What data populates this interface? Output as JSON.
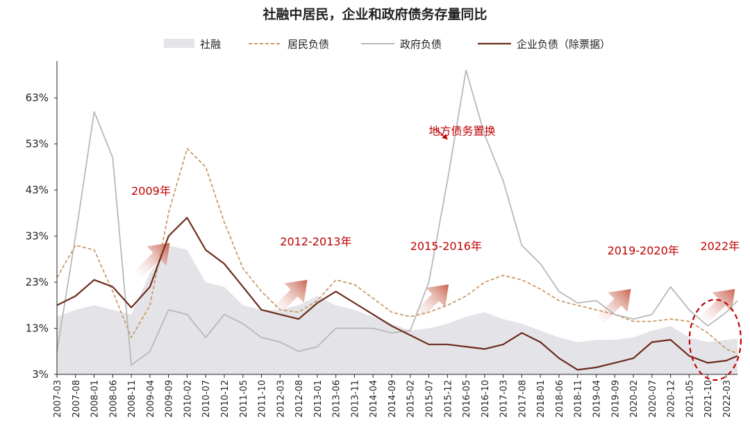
{
  "chart_data": {
    "type": "line",
    "title": "社融中居民，企业和政府债务存量同比",
    "xlabel": "",
    "ylabel": "",
    "y_ticks": [
      "3%",
      "13%",
      "23%",
      "33%",
      "43%",
      "53%",
      "63%"
    ],
    "y_tick_values": [
      3,
      13,
      23,
      33,
      43,
      53,
      63
    ],
    "ylim": [
      3,
      71
    ],
    "x_tick_labels": [
      "2007-03",
      "2007-08",
      "2008-01",
      "2008-06",
      "2008-11",
      "2009-04",
      "2009-09",
      "2010-02",
      "2010-07",
      "2010-12",
      "2011-05",
      "2011-10",
      "2012-03",
      "2012-08",
      "2013-01",
      "2013-06",
      "2013-11",
      "2014-04",
      "2014-09",
      "2015-02",
      "2015-07",
      "2015-12",
      "2016-05",
      "2016-10",
      "2017-03",
      "2017-08",
      "2018-01",
      "2018-06",
      "2018-11",
      "2019-04",
      "2019-09",
      "2020-02",
      "2020-07",
      "2020-12",
      "2021-05",
      "2021-10",
      "2022-03"
    ],
    "x_range": [
      "2007-03",
      "2022-06"
    ],
    "legend_position": "top",
    "grid": false,
    "series": [
      {
        "name": "社融",
        "style": "area",
        "color": "#e4e4e8",
        "points": [
          [
            "2007-03",
            15.5
          ],
          [
            "2007-08",
            17
          ],
          [
            "2008-01",
            18
          ],
          [
            "2008-06",
            17
          ],
          [
            "2008-11",
            16
          ],
          [
            "2009-04",
            25
          ],
          [
            "2009-09",
            31
          ],
          [
            "2010-02",
            30
          ],
          [
            "2010-07",
            23
          ],
          [
            "2010-12",
            22
          ],
          [
            "2011-05",
            18
          ],
          [
            "2011-10",
            17
          ],
          [
            "2012-03",
            17
          ],
          [
            "2012-08",
            18
          ],
          [
            "2013-01",
            20
          ],
          [
            "2013-06",
            18
          ],
          [
            "2013-11",
            17
          ],
          [
            "2014-04",
            15.5
          ],
          [
            "2014-09",
            14
          ],
          [
            "2015-02",
            12.5
          ],
          [
            "2015-07",
            13
          ],
          [
            "2015-12",
            14
          ],
          [
            "2016-05",
            15.5
          ],
          [
            "2016-10",
            16.5
          ],
          [
            "2017-03",
            15
          ],
          [
            "2017-08",
            14
          ],
          [
            "2018-01",
            12.5
          ],
          [
            "2018-06",
            11
          ],
          [
            "2018-11",
            10
          ],
          [
            "2019-04",
            10.5
          ],
          [
            "2019-09",
            10.5
          ],
          [
            "2020-02",
            11
          ],
          [
            "2020-07",
            12.5
          ],
          [
            "2020-12",
            13.5
          ],
          [
            "2021-05",
            11
          ],
          [
            "2021-10",
            10
          ],
          [
            "2022-03",
            10.5
          ],
          [
            "2022-06",
            10.8
          ]
        ]
      },
      {
        "name": "居民负债",
        "style": "dashed",
        "color": "#c99a66",
        "points": [
          [
            "2007-03",
            24
          ],
          [
            "2007-08",
            31
          ],
          [
            "2008-01",
            30
          ],
          [
            "2008-06",
            21
          ],
          [
            "2008-11",
            11
          ],
          [
            "2009-04",
            18
          ],
          [
            "2009-09",
            38
          ],
          [
            "2010-02",
            52
          ],
          [
            "2010-07",
            48
          ],
          [
            "2010-12",
            36
          ],
          [
            "2011-05",
            26
          ],
          [
            "2011-10",
            21
          ],
          [
            "2012-03",
            17
          ],
          [
            "2012-08",
            16.5
          ],
          [
            "2013-01",
            19
          ],
          [
            "2013-06",
            23.5
          ],
          [
            "2013-11",
            22.5
          ],
          [
            "2014-04",
            19.5
          ],
          [
            "2014-09",
            16.5
          ],
          [
            "2015-02",
            15.5
          ],
          [
            "2015-07",
            16.5
          ],
          [
            "2015-12",
            18
          ],
          [
            "2016-05",
            20
          ],
          [
            "2016-10",
            23
          ],
          [
            "2017-03",
            24.5
          ],
          [
            "2017-08",
            23.5
          ],
          [
            "2018-01",
            21.5
          ],
          [
            "2018-06",
            19
          ],
          [
            "2018-11",
            18
          ],
          [
            "2019-04",
            17
          ],
          [
            "2019-09",
            16
          ],
          [
            "2020-02",
            14.5
          ],
          [
            "2020-07",
            14.5
          ],
          [
            "2020-12",
            15
          ],
          [
            "2021-05",
            14.5
          ],
          [
            "2021-10",
            12
          ],
          [
            "2022-03",
            8.5
          ],
          [
            "2022-06",
            7.5
          ]
        ]
      },
      {
        "name": "政府负债",
        "style": "line",
        "color": "#b8b8b8",
        "points": [
          [
            "2007-03",
            8
          ],
          [
            "2007-08",
            33
          ],
          [
            "2008-01",
            60
          ],
          [
            "2008-06",
            50
          ],
          [
            "2008-11",
            5
          ],
          [
            "2009-04",
            8
          ],
          [
            "2009-09",
            17
          ],
          [
            "2010-02",
            16
          ],
          [
            "2010-07",
            11
          ],
          [
            "2010-12",
            16
          ],
          [
            "2011-05",
            14
          ],
          [
            "2011-10",
            11
          ],
          [
            "2012-03",
            10
          ],
          [
            "2012-08",
            8
          ],
          [
            "2013-01",
            9
          ],
          [
            "2013-06",
            13
          ],
          [
            "2013-11",
            13
          ],
          [
            "2014-04",
            13
          ],
          [
            "2014-09",
            12
          ],
          [
            "2015-02",
            12.5
          ],
          [
            "2015-07",
            23
          ],
          [
            "2015-12",
            45
          ],
          [
            "2016-05",
            69
          ],
          [
            "2016-10",
            55
          ],
          [
            "2017-03",
            45
          ],
          [
            "2017-08",
            31
          ],
          [
            "2018-01",
            27
          ],
          [
            "2018-06",
            21
          ],
          [
            "2018-11",
            18.5
          ],
          [
            "2019-04",
            19
          ],
          [
            "2019-09",
            16
          ],
          [
            "2020-02",
            15
          ],
          [
            "2020-07",
            16
          ],
          [
            "2020-12",
            22
          ],
          [
            "2021-05",
            17
          ],
          [
            "2021-10",
            13.5
          ],
          [
            "2022-03",
            16.5
          ],
          [
            "2022-06",
            19
          ]
        ]
      },
      {
        "name": "企业负债（除票据）",
        "style": "line",
        "color": "#6b2a1c",
        "points": [
          [
            "2007-03",
            18
          ],
          [
            "2007-08",
            20
          ],
          [
            "2008-01",
            23.5
          ],
          [
            "2008-06",
            22
          ],
          [
            "2008-11",
            17.5
          ],
          [
            "2009-04",
            22
          ],
          [
            "2009-09",
            33
          ],
          [
            "2010-02",
            37
          ],
          [
            "2010-07",
            30
          ],
          [
            "2010-12",
            27
          ],
          [
            "2011-05",
            22
          ],
          [
            "2011-10",
            17
          ],
          [
            "2012-03",
            16
          ],
          [
            "2012-08",
            15
          ],
          [
            "2013-01",
            18.5
          ],
          [
            "2013-06",
            21
          ],
          [
            "2013-11",
            18.5
          ],
          [
            "2014-04",
            16
          ],
          [
            "2014-09",
            13.5
          ],
          [
            "2015-02",
            11.5
          ],
          [
            "2015-07",
            9.5
          ],
          [
            "2015-12",
            9.5
          ],
          [
            "2016-05",
            9
          ],
          [
            "2016-10",
            8.5
          ],
          [
            "2017-03",
            9.5
          ],
          [
            "2017-08",
            12
          ],
          [
            "2018-01",
            10
          ],
          [
            "2018-06",
            6.5
          ],
          [
            "2018-11",
            4
          ],
          [
            "2019-04",
            4.5
          ],
          [
            "2019-09",
            5.5
          ],
          [
            "2020-02",
            6.5
          ],
          [
            "2020-07",
            10
          ],
          [
            "2020-12",
            10.5
          ],
          [
            "2021-05",
            7
          ],
          [
            "2021-10",
            5.5
          ],
          [
            "2022-03",
            6
          ],
          [
            "2022-06",
            7
          ]
        ]
      }
    ],
    "annotations": [
      {
        "text": "2009年",
        "date": "2008-11",
        "y": 42
      },
      {
        "text": "地方债务置换",
        "date": "2015-07",
        "y": 55
      },
      {
        "text": "2012-2013年",
        "date": "2012-03",
        "y": 31
      },
      {
        "text": "2015-2016年",
        "date": "2015-02",
        "y": 30
      },
      {
        "text": "2019-2020年",
        "date": "2019-07",
        "y": 29
      },
      {
        "text": "2022年",
        "date": "2021-08",
        "y": 30
      }
    ]
  },
  "colors": {
    "annotation": "#c00000",
    "arrow": "#d9907c",
    "ellipse": "#c00000",
    "axis": "#222222"
  }
}
